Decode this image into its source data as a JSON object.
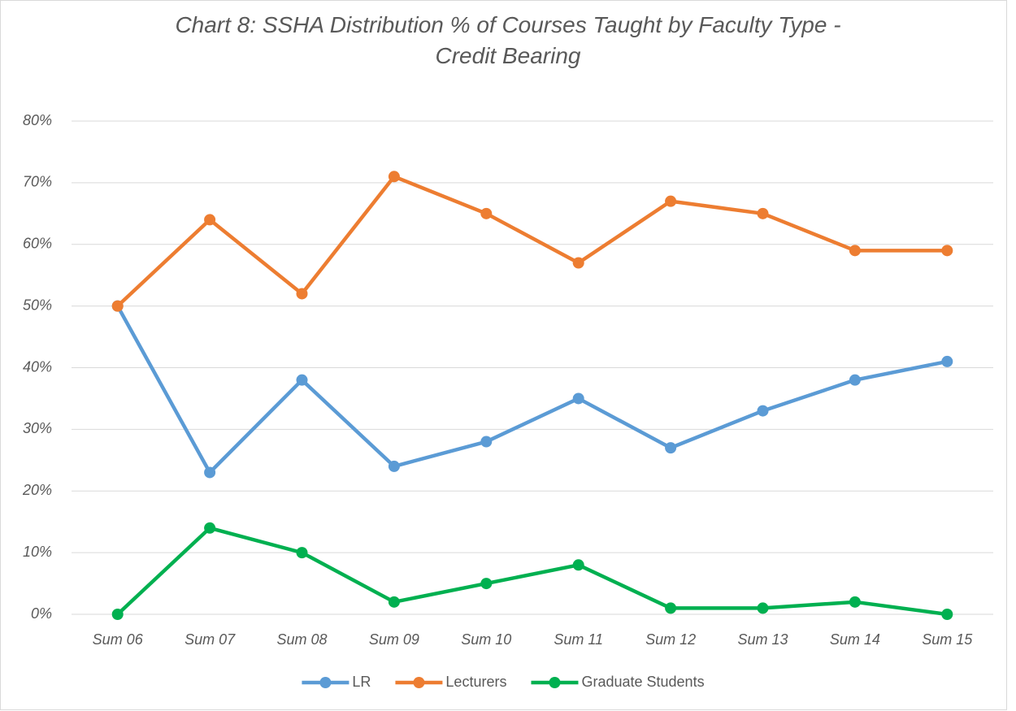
{
  "chart_data": {
    "type": "line",
    "title": "Chart 8: SSHA Distribution % of Courses Taught by Faculty Type - Credit Bearing",
    "categories": [
      "Sum 06",
      "Sum 07",
      "Sum 08",
      "Sum 09",
      "Sum 10",
      "Sum 11",
      "Sum 12",
      "Sum 13",
      "Sum 14",
      "Sum 15"
    ],
    "series": [
      {
        "name": "LR",
        "color": "#5b9bd5",
        "values": [
          50,
          23,
          38,
          24,
          28,
          35,
          27,
          33,
          38,
          41
        ]
      },
      {
        "name": "Lecturers",
        "color": "#ed7d31",
        "values": [
          50,
          64,
          52,
          71,
          65,
          57,
          67,
          65,
          59,
          59
        ]
      },
      {
        "name": "Graduate Students",
        "color": "#00b050",
        "values": [
          0,
          14,
          10,
          2,
          5,
          8,
          1,
          1,
          2,
          0
        ]
      }
    ],
    "ylim": [
      0,
      80
    ],
    "yticks": [
      {
        "value": 0,
        "label": "0%"
      },
      {
        "value": 10,
        "label": "10%"
      },
      {
        "value": 20,
        "label": "20%"
      },
      {
        "value": 30,
        "label": "30%"
      },
      {
        "value": 40,
        "label": "40%"
      },
      {
        "value": 50,
        "label": "50%"
      },
      {
        "value": 60,
        "label": "60%"
      },
      {
        "value": 70,
        "label": "70%"
      },
      {
        "value": 80,
        "label": "80%"
      }
    ],
    "grid": true,
    "legend": "bottom"
  }
}
